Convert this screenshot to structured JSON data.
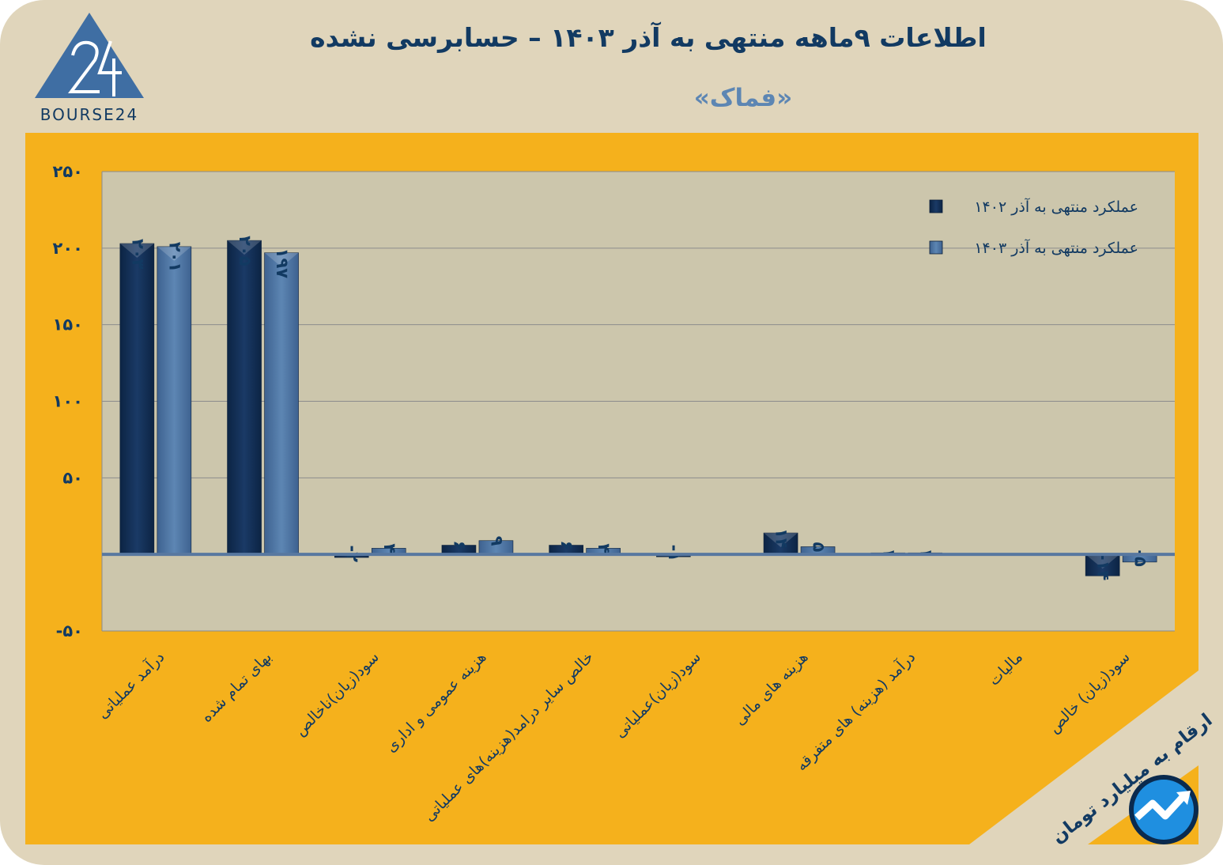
{
  "title": "اطلاعات ۹ماهه منتهی به آذر ۱۴۰۳ – حسابرسی نشده",
  "subtitle": "«فماک»",
  "logo_text": "BOURSE24",
  "units_note": "ارقام به میلیارد تومان",
  "colors": {
    "background": "#e0d5bb",
    "panel": "#f5b11c",
    "series_1402": "#1a3a66",
    "series_1403": "#5d86b3",
    "text": "#123a62"
  },
  "chart_data": {
    "type": "bar",
    "title": "اطلاعات ۹ماهه منتهی به آذر ۱۴۰۳ – حسابرسی نشده",
    "xlabel": "",
    "ylabel": "",
    "ylim": [
      -50,
      250
    ],
    "yticks": [
      250,
      200,
      150,
      100,
      50,
      -50
    ],
    "ytick_labels": [
      "۲۵۰",
      "۲۰۰",
      "۱۵۰",
      "۱۰۰",
      "۵۰",
      "-۵۰"
    ],
    "grid": true,
    "legend_position": "top-right",
    "categories": [
      "درآمد عملیاتی",
      "بهای تمام شده",
      "سود(زیان)ناخالص",
      "هزینه عمومی و اداری",
      "خالص سایر درامد(هزینه)های عملیاتی",
      "سود(زیان)عملیاتی",
      "هزینه های مالی",
      "درآمد (هزینه) های متفرقه",
      "مالیات",
      "سود(زیان) خالص"
    ],
    "series": [
      {
        "name": "عملکرد منتهی به آذر ۱۴۰۲",
        "values": [
          203,
          205,
          -2,
          6,
          6,
          -1,
          14,
          1,
          0,
          -14
        ],
        "labels": [
          "۲۰۳",
          "۲۰۵",
          "-۲",
          "۶",
          "۶",
          "-۱",
          "۱۴",
          "۱",
          "",
          "-۱۴"
        ]
      },
      {
        "name": "عملکرد منتهی به آذر ۱۴۰۳",
        "values": [
          201,
          197,
          4,
          9,
          4,
          0,
          5,
          1,
          0,
          -5
        ],
        "labels": [
          "۲۰۱",
          "۱۹۷",
          "۴",
          "۹",
          "۴",
          "",
          "۵",
          "۱",
          "",
          "-۵"
        ]
      }
    ]
  }
}
